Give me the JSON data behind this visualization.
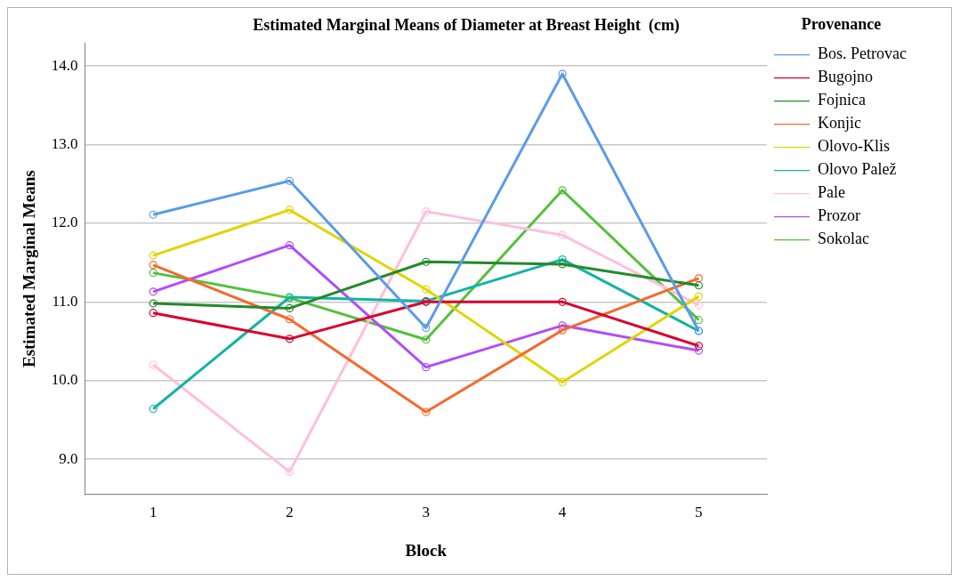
{
  "chart_data": {
    "type": "line",
    "title": "Estimated Marginal Means of Diameter at Breast Height  (cm)",
    "xlabel": "Block",
    "ylabel": "Estimated Marginal Means",
    "legend_title": "Provenance",
    "categories": [
      "1",
      "2",
      "3",
      "4",
      "5"
    ],
    "series": [
      {
        "name": "Bos. Petrovac",
        "color": "#5b9be8",
        "values": [
          12.11,
          12.54,
          10.67,
          13.9,
          10.63
        ]
      },
      {
        "name": "Bugojno",
        "color": "#d9002e",
        "values": [
          10.86,
          10.53,
          11.0,
          11.0,
          10.44
        ]
      },
      {
        "name": "Fojnica",
        "color": "#238a2a",
        "values": [
          10.98,
          10.92,
          11.51,
          11.48,
          11.21
        ]
      },
      {
        "name": "Konjic",
        "color": "#f46a2e",
        "values": [
          11.47,
          10.78,
          9.6,
          10.64,
          11.3
        ]
      },
      {
        "name": "Olovo-Klis",
        "color": "#e0d400",
        "values": [
          11.59,
          12.17,
          11.16,
          9.98,
          11.07
        ]
      },
      {
        "name": "Olovo Palež",
        "color": "#12b3a3",
        "values": [
          9.64,
          11.06,
          11.01,
          11.54,
          10.63
        ]
      },
      {
        "name": "Pale",
        "color": "#ffbfdc",
        "values": [
          10.2,
          8.84,
          12.15,
          11.85,
          10.96
        ]
      },
      {
        "name": "Prozor",
        "color": "#b04cff",
        "values": [
          11.13,
          11.72,
          10.17,
          10.7,
          10.38
        ]
      },
      {
        "name": "Sokolac",
        "color": "#55c03c",
        "values": [
          11.37,
          11.05,
          10.52,
          12.42,
          10.77
        ]
      }
    ],
    "ylim": [
      8.55,
      14.29
    ],
    "yticks": [
      {
        "value": 9,
        "label": "9.0"
      },
      {
        "value": 10,
        "label": "10.0"
      },
      {
        "value": 11,
        "label": "11.0"
      },
      {
        "value": 12,
        "label": "12.0"
      },
      {
        "value": 13,
        "label": "13.0"
      },
      {
        "value": 14,
        "label": "14.0"
      }
    ],
    "grid": "y",
    "legend": "top right",
    "marker": "circle",
    "line_style": "solid"
  }
}
